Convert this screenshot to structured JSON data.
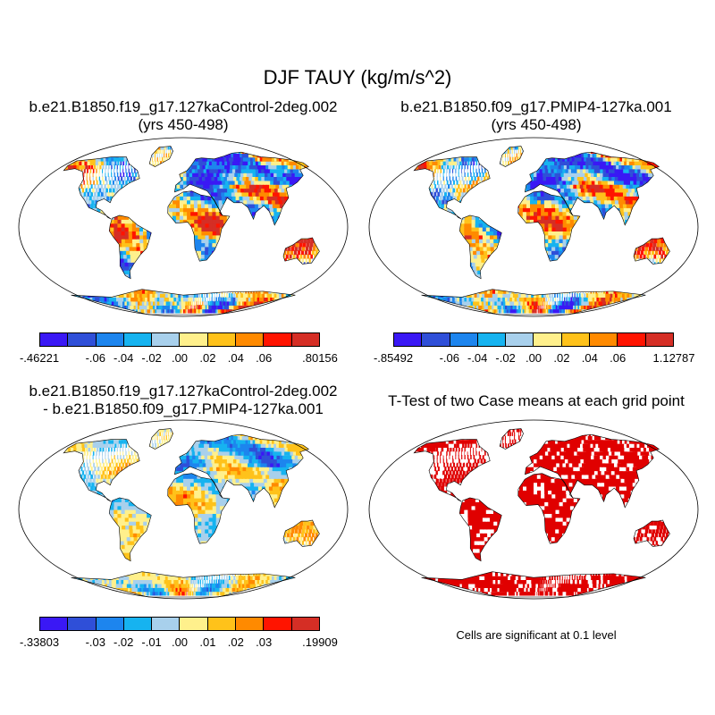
{
  "title": "DJF TAUY (kg/m/s^2)",
  "panels": [
    {
      "line1": "b.e21.B1850.f19_g17.127kaControl-2deg.002",
      "line2": "(yrs 450-498)",
      "colorbar_labels": [
        "-.46221",
        "-.06",
        "-.04",
        "-.02",
        ".00",
        ".02",
        ".04",
        ".06",
        ".80156"
      ]
    },
    {
      "line1": "b.e21.B1850.f09_g17.PMIP4-127ka.001",
      "line2": "(yrs 450-498)",
      "colorbar_labels": [
        "-.85492",
        "-.06",
        "-.04",
        "-.02",
        ".00",
        ".02",
        ".04",
        ".06",
        "1.12787"
      ]
    },
    {
      "line1": "b.e21.B1850.f19_g17.127kaControl-2deg.002",
      "line2": "- b.e21.B1850.f09_g17.PMIP4-127ka.001",
      "colorbar_labels": [
        "-.33803",
        "-.03",
        "-.02",
        "-.01",
        ".00",
        ".01",
        ".02",
        ".03",
        ".19909"
      ]
    },
    {
      "line1": "T-Test of two Case means at each grid point",
      "note": "Cells are significant at 0.1 level"
    }
  ],
  "palette": [
    "#3a18f5",
    "#2f4fd8",
    "#1d85ee",
    "#16b3f0",
    "#a8d0ec",
    "#fff08c",
    "#ffc21a",
    "#ff8a00",
    "#ff1400",
    "#d52e25"
  ],
  "significance_color": "#e00000"
}
